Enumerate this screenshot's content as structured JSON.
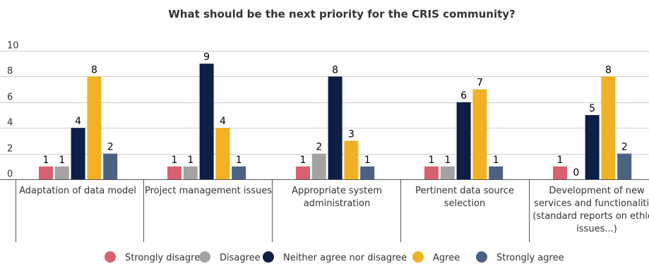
{
  "chart_data": {
    "type": "bar",
    "title": "What should be the next priority for the CRIS community?",
    "xlabel": "",
    "ylabel": "",
    "ylim": [
      0,
      10
    ],
    "yticks": [
      0,
      2,
      4,
      6,
      8,
      10
    ],
    "grid": true,
    "legend_position": "bottom",
    "categories": [
      [
        "Adaptation of data model"
      ],
      [
        "Project management issues"
      ],
      [
        "Appropriate system",
        "administration"
      ],
      [
        "Pertinent data source",
        "selection"
      ],
      [
        "Development of new",
        "services and functionalities",
        "(standard reports on ethical",
        "issues...)"
      ]
    ],
    "series": [
      {
        "name": "Strongly disagree",
        "color": "#d9606f",
        "values": [
          1,
          1,
          1,
          1,
          1
        ]
      },
      {
        "name": "Disagree",
        "color": "#a3a3a3",
        "values": [
          1,
          1,
          2,
          1,
          0
        ]
      },
      {
        "name": "Neither agree nor disagree",
        "color": "#0d1f45",
        "values": [
          4,
          9,
          8,
          6,
          5
        ]
      },
      {
        "name": "Agree",
        "color": "#f2b124",
        "values": [
          8,
          4,
          3,
          7,
          8
        ]
      },
      {
        "name": "Strongly agree",
        "color": "#4b6283",
        "values": [
          2,
          1,
          1,
          1,
          2
        ]
      }
    ]
  }
}
